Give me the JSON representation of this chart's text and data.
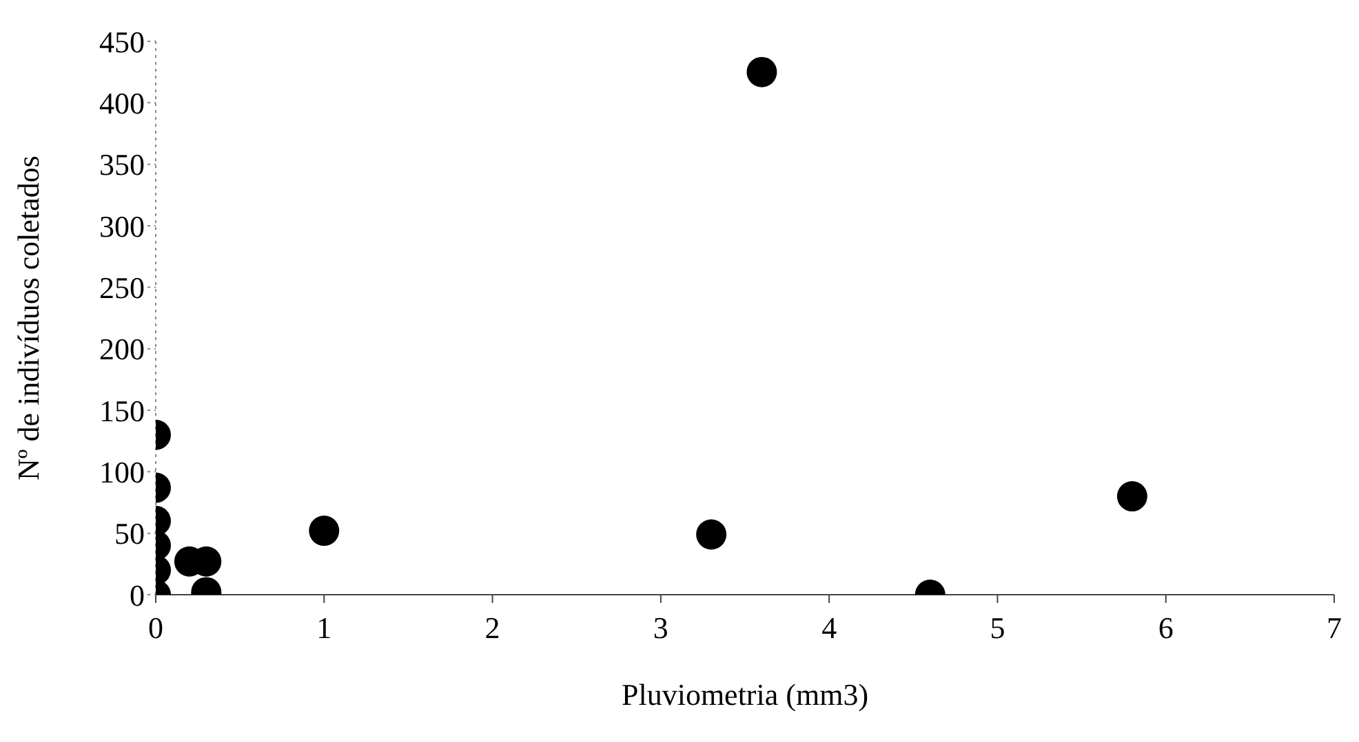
{
  "chart_data": {
    "type": "scatter",
    "xlabel": "Pluviometria (mm3)",
    "ylabel": "Nº de indivíduos coletados",
    "x": [
      0,
      0,
      0,
      0,
      0,
      0,
      0.2,
      0.3,
      0.3,
      1,
      3.3,
      3.6,
      4.6,
      5.8
    ],
    "series": [
      {
        "color": "#000000",
        "values": [
          130,
          87,
          60,
          40,
          20,
          0,
          27,
          27,
          2,
          52,
          49,
          425,
          0,
          80
        ]
      }
    ],
    "xlim": [
      0,
      7
    ],
    "xticks": [
      0,
      1,
      2,
      3,
      4,
      5,
      6,
      7
    ],
    "ylim": [
      0,
      450
    ],
    "yticks": [
      0,
      50,
      100,
      150,
      200,
      250,
      300,
      350,
      400,
      450
    ],
    "grid": false,
    "legend": false,
    "marker": "circle"
  }
}
